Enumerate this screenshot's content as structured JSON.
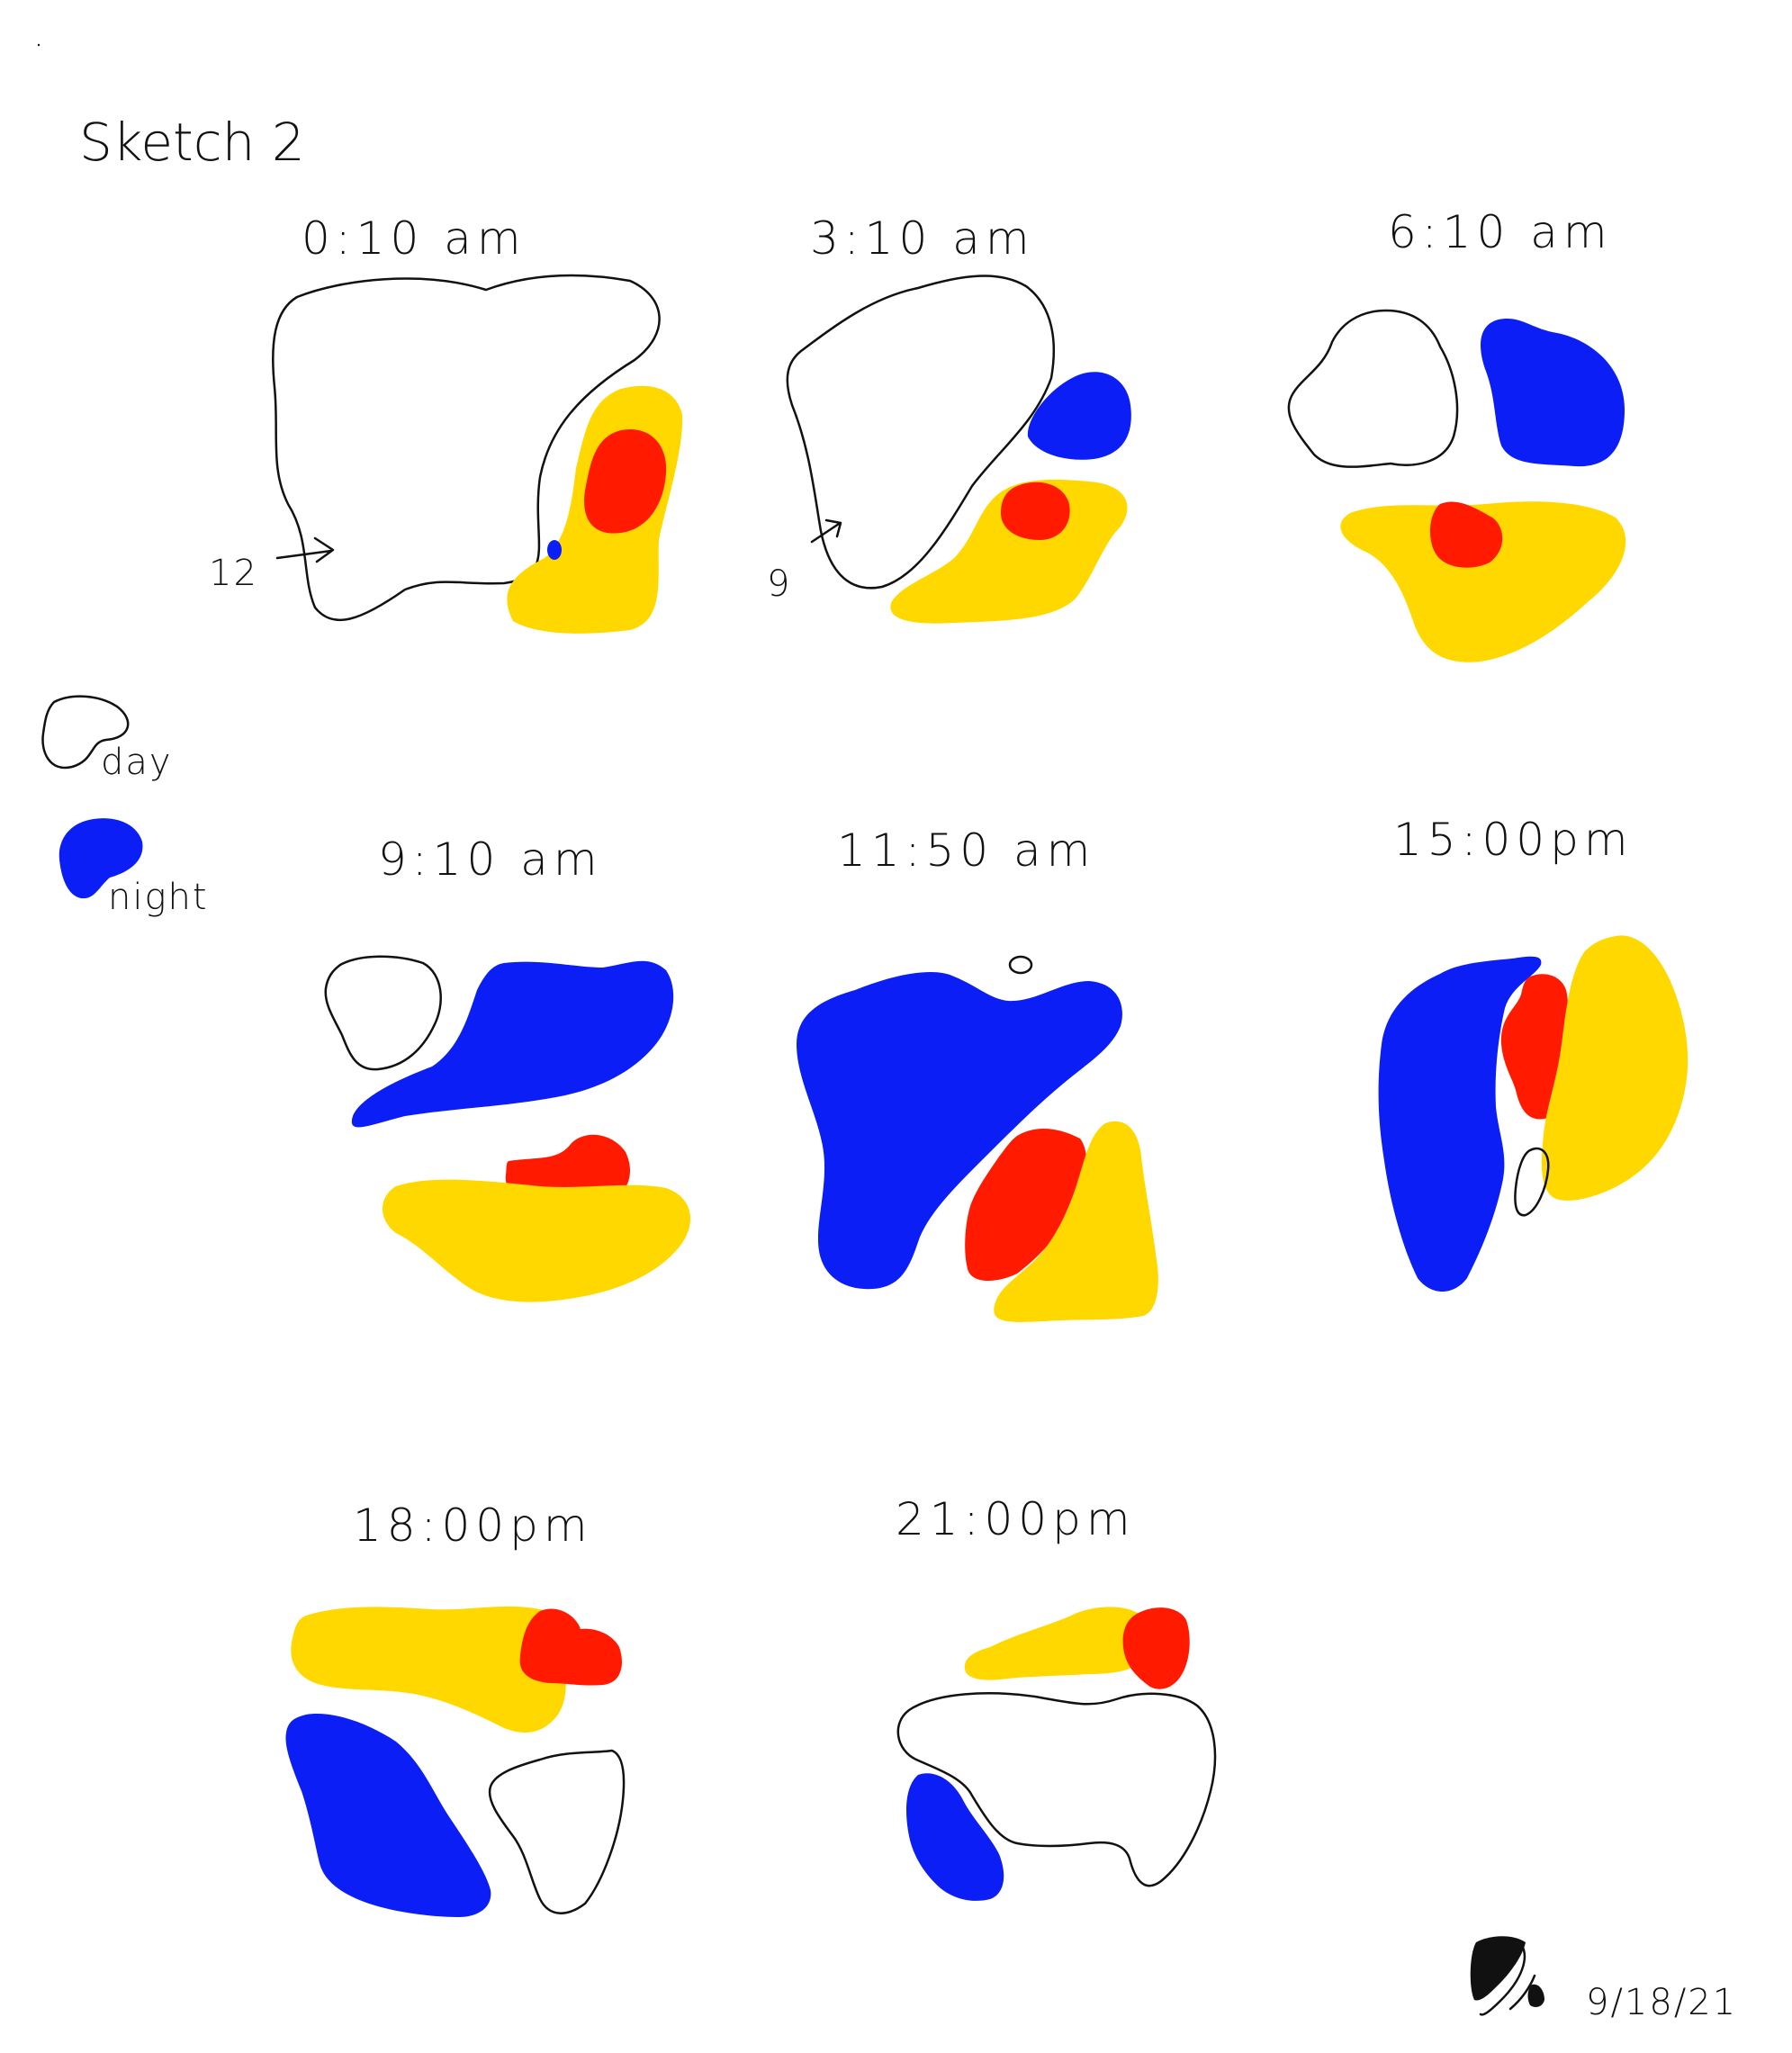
{
  "title": "Sketch 2",
  "legend": {
    "day_label": "day",
    "night_label": "night"
  },
  "colors": {
    "day": "#ffffff",
    "night": "#0a1ef5",
    "sun": "#ffd800",
    "sun_core": "#ff1a00",
    "outline": "#111111"
  },
  "panels": [
    {
      "time": "0:10 am",
      "marker": "12"
    },
    {
      "time": "3:10 am",
      "marker": "9"
    },
    {
      "time": "6:10 am"
    },
    {
      "time": "9:10 am"
    },
    {
      "time": "11:50 am",
      "marker": "0"
    },
    {
      "time": "15:00pm"
    },
    {
      "time": "18:00pm"
    },
    {
      "time": "21:00pm"
    }
  ],
  "date": "9/18/21",
  "signature_icon": "signature-mark"
}
